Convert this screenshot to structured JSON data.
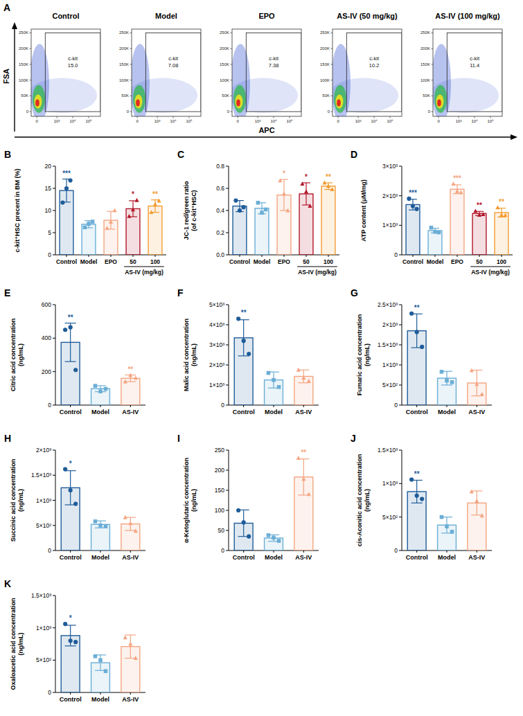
{
  "chart_data": [
    {
      "type": "scatter",
      "panel": "A",
      "title": "Control",
      "xlabel": "APC",
      "ylabel": "FSA",
      "xlim": [
        -100,
        550000
      ],
      "ylim": [
        -15000,
        262000
      ],
      "xticks": [
        0,
        {
          "value": 1000,
          "label": "10³"
        },
        {
          "value": 10000,
          "label": "10⁴"
        },
        {
          "value": 100000,
          "label": "10⁵"
        }
      ],
      "yticks": [
        0,
        {
          "value": 50000,
          "label": "50K"
        },
        {
          "value": 100000,
          "label": "100K"
        },
        {
          "value": 150000,
          "label": "150K"
        },
        {
          "value": 200000,
          "label": "200K"
        },
        {
          "value": 250000,
          "label": "250K"
        }
      ],
      "gate": {
        "label": "c-kit",
        "value": 15,
        "value_label": "15.0",
        "x": [
          170,
          550000
        ],
        "y": [
          0,
          250000
        ]
      }
    },
    {
      "type": "scatter",
      "title": "Model",
      "xlim": [
        -100,
        550000
      ],
      "ylim": [
        -15000,
        262000
      ],
      "xticks": [
        0,
        {
          "value": 1000,
          "label": "10³"
        },
        {
          "value": 10000,
          "label": "10⁴"
        },
        {
          "value": 100000,
          "label": "10⁵"
        }
      ],
      "yticks": [
        0,
        {
          "value": 50000,
          "label": "50K"
        },
        {
          "value": 100000,
          "label": "100K"
        },
        {
          "value": 150000,
          "label": "150K"
        },
        {
          "value": 200000,
          "label": "200K"
        },
        {
          "value": 250000,
          "label": "250K"
        }
      ],
      "gate": {
        "label": "c-kit",
        "value": 7.08,
        "x": [
          170,
          550000
        ],
        "y": [
          0,
          250000
        ]
      }
    },
    {
      "type": "scatter",
      "title": "EPO",
      "xlim": [
        -100,
        550000
      ],
      "ylim": [
        -15000,
        262000
      ],
      "xticks": [
        0,
        {
          "value": 1000,
          "label": "10³"
        },
        {
          "value": 10000,
          "label": "10⁴"
        },
        {
          "value": 100000,
          "label": "10⁵"
        }
      ],
      "yticks": [
        0,
        {
          "value": 50000,
          "label": "50K"
        },
        {
          "value": 100000,
          "label": "100K"
        },
        {
          "value": 150000,
          "label": "150K"
        },
        {
          "value": 200000,
          "label": "200K"
        },
        {
          "value": 250000,
          "label": "250K"
        }
      ],
      "gate": {
        "label": "c-kit",
        "value": 7.38,
        "x": [
          170,
          550000
        ],
        "y": [
          0,
          250000
        ]
      }
    },
    {
      "type": "scatter",
      "title": "AS-IV (50 mg/kg)",
      "xlim": [
        -100,
        550000
      ],
      "ylim": [
        -15000,
        262000
      ],
      "xticks": [
        0,
        {
          "value": 1000,
          "label": "10³"
        },
        {
          "value": 10000,
          "label": "10⁴"
        },
        {
          "value": 100000,
          "label": "10⁵"
        }
      ],
      "yticks": [
        0,
        {
          "value": 50000,
          "label": "50K"
        },
        {
          "value": 100000,
          "label": "100K"
        },
        {
          "value": 150000,
          "label": "150K"
        },
        {
          "value": 200000,
          "label": "200K"
        },
        {
          "value": 250000,
          "label": "250K"
        }
      ],
      "gate": {
        "label": "c-kit",
        "value": 10.2,
        "x": [
          170,
          550000
        ],
        "y": [
          0,
          250000
        ]
      }
    },
    {
      "type": "scatter",
      "title": "AS-IV (100 mg/kg)",
      "xlim": [
        -100,
        550000
      ],
      "ylim": [
        -15000,
        262000
      ],
      "xticks": [
        0,
        {
          "value": 1000,
          "label": "10³"
        },
        {
          "value": 10000,
          "label": "10⁴"
        },
        {
          "value": 100000,
          "label": "10⁵"
        }
      ],
      "yticks": [
        0,
        {
          "value": 50000,
          "label": "50K"
        },
        {
          "value": 100000,
          "label": "100K"
        },
        {
          "value": 150000,
          "label": "150K"
        },
        {
          "value": 200000,
          "label": "200K"
        },
        {
          "value": 250000,
          "label": "250K"
        }
      ],
      "gate": {
        "label": "c-kit",
        "value": 11.4,
        "x": [
          170,
          550000
        ],
        "y": [
          0,
          250000
        ]
      }
    },
    {
      "type": "bar",
      "panel": "B",
      "ylabel": "c-kit⁺HSC precent in BM (%)",
      "categories": [
        "Control",
        "Model",
        "EPO",
        "50",
        "100"
      ],
      "group_label": "AS-IV (mg/kg)",
      "values": [
        14.5,
        6.9,
        7.8,
        10.4,
        11.0
      ],
      "errors": [
        2.6,
        0.8,
        2.0,
        1.8,
        1.4
      ],
      "points": [
        [
          11.8,
          15.0,
          16.8
        ],
        [
          6.2,
          7.0,
          7.5
        ],
        [
          6.0,
          7.4,
          10.0
        ],
        [
          8.7,
          10.2,
          12.3
        ],
        [
          9.6,
          11.4,
          12.2
        ]
      ],
      "significance": [
        "***",
        null,
        null,
        "*",
        "**"
      ],
      "colors": [
        "#1f5c99",
        "#6aaed6",
        "#f4a582",
        "#b2182b",
        "#f39c32"
      ],
      "ylim": [
        0,
        20
      ],
      "yticks": [
        0,
        5,
        10,
        15,
        20
      ]
    },
    {
      "type": "bar",
      "panel": "C",
      "ylabel": "JC-1 red/green ratio (of c-kit⁺HSC)",
      "categories": [
        "Control",
        "Model",
        "EPO",
        "50",
        "100"
      ],
      "group_label": "AS-IV (mg/kg)",
      "values": [
        0.44,
        0.42,
        0.54,
        0.55,
        0.62
      ],
      "errors": [
        0.05,
        0.05,
        0.14,
        0.1,
        0.03
      ],
      "points": [
        [
          0.49,
          0.4,
          0.43
        ],
        [
          0.47,
          0.38,
          0.41
        ],
        [
          0.67,
          0.55,
          0.4
        ],
        [
          0.64,
          0.57,
          0.44
        ],
        [
          0.65,
          0.62,
          0.59
        ]
      ],
      "significance": [
        null,
        null,
        "*",
        "*",
        "**"
      ],
      "colors": [
        "#1f5c99",
        "#6aaed6",
        "#f4a582",
        "#b2182b",
        "#f39c32"
      ],
      "ylim": [
        0,
        0.8
      ],
      "yticks": [
        {
          "value": 0,
          "label": "0.0"
        },
        0.2,
        0.4,
        0.6,
        0.8
      ]
    },
    {
      "type": "bar",
      "panel": "D",
      "ylabel": "ATP content (μM/mg)",
      "categories": [
        "Control",
        "Model",
        "EPO",
        "50",
        "100"
      ],
      "group_label": "AS-IV (mg/kg)",
      "values": [
        1700,
        820,
        2220,
        1400,
        1430
      ],
      "errors": [
        180,
        80,
        150,
        70,
        150
      ],
      "points": [
        [
          1900,
          1650,
          1550
        ],
        [
          920,
          780,
          760
        ],
        [
          2400,
          2150,
          2110
        ],
        [
          1480,
          1350,
          1370
        ],
        [
          1600,
          1350,
          1340
        ]
      ],
      "significance": [
        "***",
        null,
        "***",
        "**",
        "**"
      ],
      "colors": [
        "#1f5c99",
        "#6aaed6",
        "#f4a582",
        "#b2182b",
        "#f39c32"
      ],
      "ylim": [
        0,
        3000
      ],
      "yticks": [
        0,
        {
          "value": 1000,
          "label": "1×10³"
        },
        {
          "value": 2000,
          "label": "2×10³"
        },
        {
          "value": 3000,
          "label": "3×10³"
        }
      ]
    },
    {
      "type": "bar",
      "panel": "E",
      "ylabel": "Citric acid concentration (ng/mL)",
      "categories": [
        "Control",
        "Model",
        "AS-IV"
      ],
      "values": [
        375,
        98,
        160
      ],
      "errors": [
        115,
        18,
        20
      ],
      "points": [
        [
          450,
          465,
          210
        ],
        [
          115,
          82,
          97
        ],
        [
          140,
          178,
          162
        ]
      ],
      "significance": [
        "**",
        null,
        "**"
      ],
      "colors": [
        "#1f5c99",
        "#6aaed6",
        "#f4a582"
      ],
      "ylim": [
        0,
        600
      ],
      "yticks": [
        0,
        200,
        400,
        600
      ]
    },
    {
      "type": "bar",
      "panel": "F",
      "ylabel": "Malic acid concentration (ng/mL)",
      "categories": [
        "Control",
        "Model",
        "AS-IV"
      ],
      "values": [
        3350,
        1250,
        1430
      ],
      "errors": [
        900,
        400,
        320
      ],
      "points": [
        [
          4300,
          3200,
          2550
        ],
        [
          1600,
          1250,
          900
        ],
        [
          1750,
          1350,
          1190
        ]
      ],
      "significance": [
        "**",
        null,
        null
      ],
      "colors": [
        "#1f5c99",
        "#6aaed6",
        "#f4a582"
      ],
      "ylim": [
        0,
        5000
      ],
      "yticks": [
        0,
        {
          "value": 1000,
          "label": "1×10³"
        },
        {
          "value": 2000,
          "label": "2×10³"
        },
        {
          "value": 3000,
          "label": "3×10³"
        },
        {
          "value": 4000,
          "label": "4×10³"
        },
        {
          "value": 5000,
          "label": "5×10³"
        }
      ]
    },
    {
      "type": "bar",
      "panel": "G",
      "ylabel": "Fumaric acid concentration (ng/mL)",
      "categories": [
        "Control",
        "Model",
        "AS-IV"
      ],
      "values": [
        1850,
        670,
        550
      ],
      "errors": [
        420,
        170,
        320
      ],
      "points": [
        [
          2280,
          1820,
          1450
        ],
        [
          830,
          610,
          570
        ],
        [
          860,
          520,
          270
        ]
      ],
      "significance": [
        "**",
        null,
        null
      ],
      "colors": [
        "#1f5c99",
        "#6aaed6",
        "#f4a582"
      ],
      "ylim": [
        0,
        2500
      ],
      "yticks": [
        0,
        {
          "value": 500,
          "label": "5×10²"
        },
        {
          "value": 1000,
          "label": "1×10³"
        },
        {
          "value": 1500,
          "label": "1.5×10³"
        },
        {
          "value": 2000,
          "label": "2×10³"
        },
        {
          "value": 2500,
          "label": "2.5×10³"
        }
      ]
    },
    {
      "type": "bar",
      "panel": "H",
      "ylabel": "Succinic acid concentration (ng/mL)",
      "categories": [
        "Control",
        "Model",
        "AS-IV"
      ],
      "values": [
        1250,
        520,
        530
      ],
      "errors": [
        340,
        70,
        130
      ],
      "points": [
        [
          1620,
          1200,
          930
        ],
        [
          580,
          500,
          480
        ],
        [
          660,
          540,
          390
        ]
      ],
      "significance": [
        "*",
        null,
        null
      ],
      "colors": [
        "#1f5c99",
        "#6aaed6",
        "#f4a582"
      ],
      "ylim": [
        0,
        2000
      ],
      "yticks": [
        0,
        {
          "value": 500,
          "label": "5×10²"
        },
        {
          "value": 1000,
          "label": "1×10³"
        },
        {
          "value": 1500,
          "label": "1.5×10³"
        },
        {
          "value": 2000,
          "label": "2×10³"
        }
      ]
    },
    {
      "type": "bar",
      "panel": "I",
      "ylabel": "α-Ketoglutaric concentration (ng/mL)",
      "categories": [
        "Control",
        "Model",
        "AS-IV"
      ],
      "values": [
        68,
        31,
        183
      ],
      "errors": [
        33,
        8,
        45
      ],
      "points": [
        [
          100,
          70,
          35
        ],
        [
          38,
          32,
          24
        ],
        [
          230,
          178,
          140
        ]
      ],
      "significance": [
        null,
        null,
        "**"
      ],
      "colors": [
        "#1f5c99",
        "#6aaed6",
        "#f4a582"
      ],
      "ylim": [
        0,
        250
      ],
      "yticks": [
        0,
        50,
        100,
        150,
        200,
        250
      ]
    },
    {
      "type": "bar",
      "panel": "J",
      "ylabel": "cis-Aconitic acid concentration (ng/mL)",
      "categories": [
        "Control",
        "Model",
        "AS-IV"
      ],
      "values": [
        880,
        380,
        710
      ],
      "errors": [
        170,
        120,
        180
      ],
      "points": [
        [
          1060,
          820,
          770
        ],
        [
          500,
          360,
          280
        ],
        [
          880,
          740,
          520
        ]
      ],
      "significance": [
        "**",
        null,
        null
      ],
      "colors": [
        "#1f5c99",
        "#6aaed6",
        "#f4a582"
      ],
      "ylim": [
        0,
        1500
      ],
      "yticks": [
        0,
        {
          "value": 500,
          "label": "5×10²"
        },
        {
          "value": 1000,
          "label": "1×10³"
        },
        {
          "value": 1500,
          "label": "1.5×10³"
        }
      ]
    },
    {
      "type": "bar",
      "panel": "K",
      "ylabel": "Oxaloacetic acid concentration (ng/mL)",
      "categories": [
        "Control",
        "Model",
        "AS-IV"
      ],
      "values": [
        880,
        460,
        710
      ],
      "errors": [
        160,
        120,
        180
      ],
      "points": [
        [
          1060,
          800,
          780
        ],
        [
          560,
          500,
          330
        ],
        [
          850,
          750,
          530
        ]
      ],
      "significance": [
        "*",
        null,
        null
      ],
      "colors": [
        "#1f5c99",
        "#6aaed6",
        "#f4a582"
      ],
      "ylim": [
        0,
        1500
      ],
      "yticks": [
        0,
        {
          "value": 500,
          "label": "5×10²"
        },
        {
          "value": 1000,
          "label": "1×10³"
        },
        {
          "value": 1500,
          "label": "1.5×10³"
        }
      ]
    }
  ]
}
